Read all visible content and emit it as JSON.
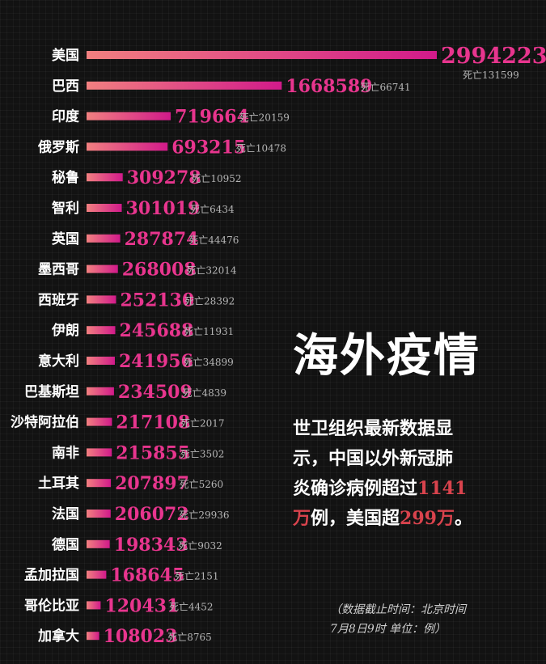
{
  "chart_data": {
    "type": "bar",
    "orientation": "horizontal",
    "categories": [
      "美国",
      "巴西",
      "印度",
      "俄罗斯",
      "秘鲁",
      "智利",
      "英国",
      "墨西哥",
      "西班牙",
      "伊朗",
      "意大利",
      "巴基斯坦",
      "沙特阿拉伯",
      "南非",
      "土耳其",
      "法国",
      "德国",
      "孟加拉国",
      "哥伦比亚",
      "加拿大"
    ],
    "values": [
      2994223,
      1668589,
      719664,
      693215,
      309278,
      301019,
      287874,
      268008,
      252130,
      245688,
      241956,
      234509,
      217108,
      215855,
      207897,
      206072,
      198343,
      168645,
      120431,
      108023
    ],
    "deaths": [
      "死亡131599",
      "死亡66741",
      "死亡20159",
      "死亡10478",
      "死亡10952",
      "死亡6434",
      "死亡44476",
      "死亡32014",
      "死亡28392",
      "死亡11931",
      "死亡34899",
      "死亡4839",
      "死亡2017",
      "死亡3502",
      "死亡5260",
      "死亡29936",
      "死亡9032",
      "死亡2151",
      "死亡4452",
      "死亡8765"
    ],
    "colors": {
      "bar_start": "#f28080",
      "bar_end": "#d11a8a",
      "value_text": "#e8358e",
      "death_text": "#b5b5b5"
    }
  },
  "headline": "海外疫情",
  "body": {
    "line1": "世卫组织最新数据显",
    "line2": "示，中国以外新冠肺",
    "line3_a": "炎确诊病例超过",
    "line3_b": "1141",
    "line4_a": "万",
    "line4_b": "例，美国超",
    "line4_c": "299万",
    "line4_d": "。"
  },
  "note": {
    "line1": "（数据截止时间：北京时间",
    "line2": "7月8日9时 单位：例）"
  }
}
